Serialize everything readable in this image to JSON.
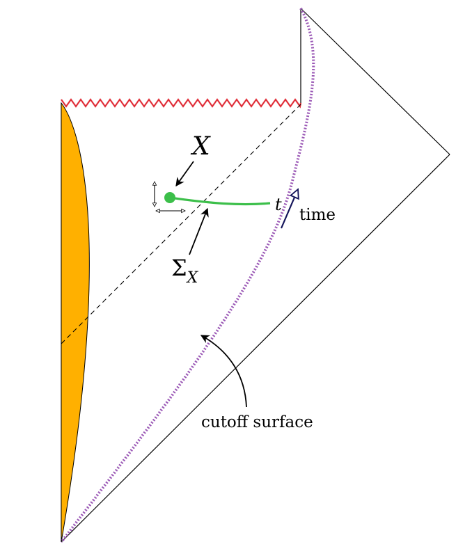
{
  "labels": {
    "point": "X",
    "slice_symbol": "Σ",
    "slice_subscript": "X",
    "boundary_time": "t",
    "time_arrow": "time",
    "cutoff": "cutoff surface"
  },
  "colors": {
    "singularity": "#e0303a",
    "region_fill": "#ffb000",
    "cutoff_surface": "#9b59b6",
    "geodesic": "#3cbf4a",
    "point": "#3cbf4a",
    "outline": "#000000",
    "horizon_dashed": "#000000",
    "time_arrow": "#14145a"
  }
}
